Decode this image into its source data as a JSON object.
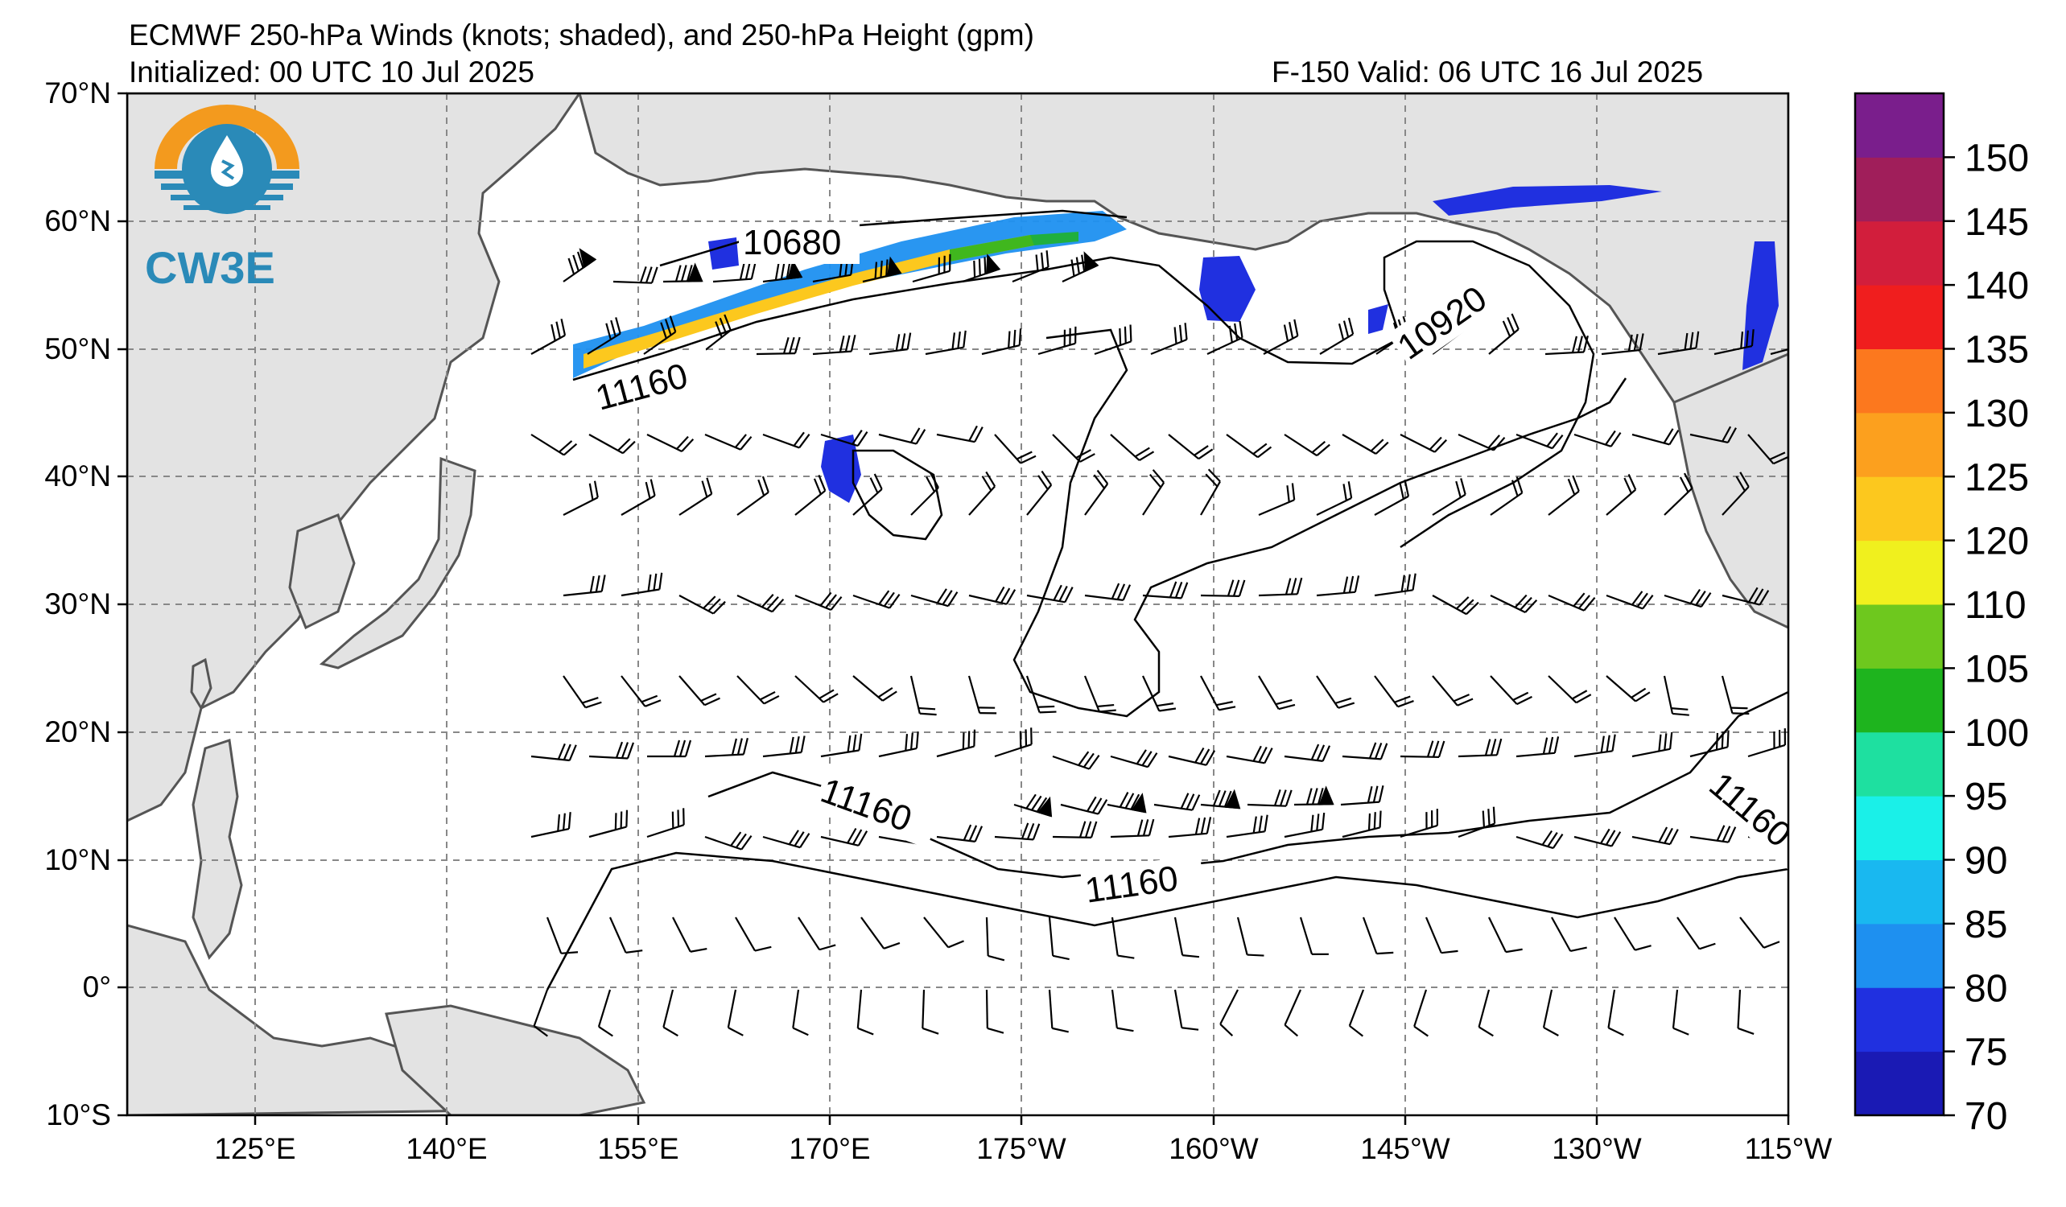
{
  "header": {
    "title": "ECMWF 250-hPa Winds (knots; shaded), and 250-hPa Height (gpm)",
    "initialized": "Initialized: 00 UTC 10 Jul 2025",
    "valid": "F-150  Valid: 06 UTC 16 Jul 2025"
  },
  "logo": {
    "text": "CW3E",
    "icon": "water-drop-sun-icon"
  },
  "axes": {
    "lat_labels": [
      "70°N",
      "60°N",
      "50°N",
      "40°N",
      "30°N",
      "20°N",
      "10°N",
      "0°",
      "10°S"
    ],
    "lon_labels": [
      "125°E",
      "140°E",
      "155°E",
      "170°E",
      "175°W",
      "160°W",
      "145°W",
      "130°W",
      "115°W"
    ]
  },
  "contour_labels": [
    "10680",
    "11160",
    "10920",
    "11160",
    "11160",
    "11160"
  ],
  "colorbar": {
    "ticks": [
      "70",
      "75",
      "80",
      "85",
      "90",
      "95",
      "100",
      "105",
      "110",
      "120",
      "125",
      "130",
      "135",
      "140",
      "145",
      "150"
    ],
    "colors": [
      "#1a1ab4",
      "#2030e0",
      "#1e90f0",
      "#19b8f0",
      "#1af0e8",
      "#1ee0a0",
      "#1eb41e",
      "#6ec81e",
      "#f0f01e",
      "#fcc81e",
      "#fca01e",
      "#fc781e",
      "#f01e1e",
      "#d21e3c",
      "#a01e5a",
      "#7a1e8c"
    ]
  }
}
